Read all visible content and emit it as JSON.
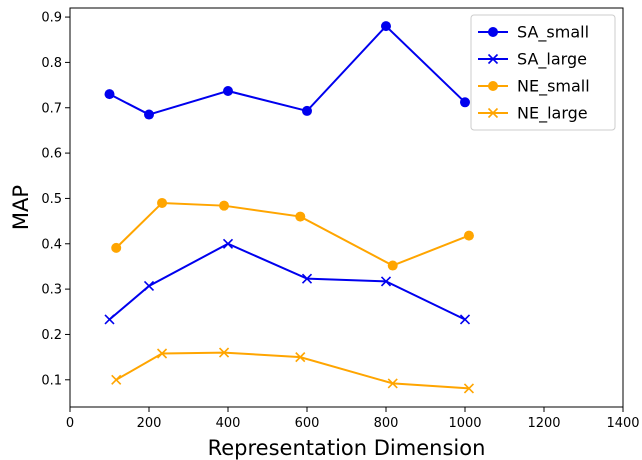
{
  "chart_data": {
    "type": "line",
    "title": "",
    "xlabel": "Representation Dimension",
    "ylabel": "MAP",
    "xlim": [
      0,
      1400
    ],
    "ylim": [
      0.04,
      0.92
    ],
    "xticks": [
      0,
      200,
      400,
      600,
      800,
      1000,
      1200,
      1400
    ],
    "yticks": [
      0.1,
      0.2,
      0.3,
      0.4,
      0.5,
      0.6,
      0.7,
      0.8,
      0.9
    ],
    "grid": false,
    "legend": "top-right",
    "series": [
      {
        "name": "SA_small",
        "color": "#0000ee",
        "marker": "circle",
        "points": [
          [
            100,
            0.73
          ],
          [
            200,
            0.685
          ],
          [
            400,
            0.737
          ],
          [
            600,
            0.693
          ],
          [
            800,
            0.88
          ],
          [
            1000,
            0.712
          ]
        ]
      },
      {
        "name": "SA_large",
        "color": "#0000ee",
        "marker": "x",
        "points": [
          [
            100,
            0.233
          ],
          [
            200,
            0.307
          ],
          [
            400,
            0.4
          ],
          [
            600,
            0.323
          ],
          [
            800,
            0.317
          ],
          [
            1000,
            0.233
          ]
        ]
      },
      {
        "name": "NE_small",
        "color": "#ffa500",
        "marker": "circle",
        "points": [
          [
            117,
            0.391
          ],
          [
            233,
            0.49
          ],
          [
            390,
            0.484
          ],
          [
            583,
            0.46
          ],
          [
            817,
            0.352
          ],
          [
            1010,
            0.418
          ]
        ]
      },
      {
        "name": "NE_large",
        "color": "#ffa500",
        "marker": "x",
        "points": [
          [
            117,
            0.1
          ],
          [
            233,
            0.158
          ],
          [
            390,
            0.16
          ],
          [
            583,
            0.15
          ],
          [
            817,
            0.092
          ],
          [
            1010,
            0.081
          ]
        ]
      }
    ]
  }
}
